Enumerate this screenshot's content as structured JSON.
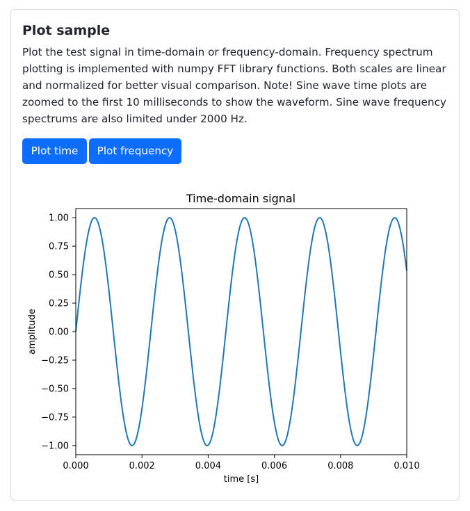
{
  "card": {
    "title": "Plot sample",
    "description": "Plot the test signal in time-domain or frequency-domain. Frequency spectrum plotting is implemented with numpy FFT library functions. Both scales are linear and normalized for better visual comparison. Note! Sine wave time plots are zoomed to the first 10 milliseconds to show the waveform. Sine wave frequency spectrums are also limited under 2000 Hz."
  },
  "buttons": {
    "plot_time": "Plot time",
    "plot_frequency": "Plot frequency",
    "color": "#0d6efd"
  },
  "chart_data": {
    "type": "line",
    "title": "Time-domain signal",
    "xlabel": "time [s]",
    "ylabel": "amplitude",
    "xlim": [
      0,
      0.01
    ],
    "ylim": [
      -1.08,
      1.08
    ],
    "x_ticks": [
      "0.000",
      "0.002",
      "0.004",
      "0.006",
      "0.008",
      "0.010"
    ],
    "x_tick_values": [
      0,
      0.002,
      0.004,
      0.006,
      0.008,
      0.01
    ],
    "y_ticks": [
      "1.00",
      "0.75",
      "0.50",
      "0.25",
      "0.00",
      "−0.25",
      "−0.50",
      "−0.75",
      "−1.00"
    ],
    "y_tick_values": [
      1,
      0.75,
      0.5,
      0.25,
      0,
      -0.25,
      -0.5,
      -0.75,
      -1
    ],
    "series": [
      {
        "function": "sine",
        "frequency_hz": 441,
        "amplitude": 1.0,
        "color": "#1f77b4"
      }
    ],
    "grid": false,
    "legend": "none"
  }
}
